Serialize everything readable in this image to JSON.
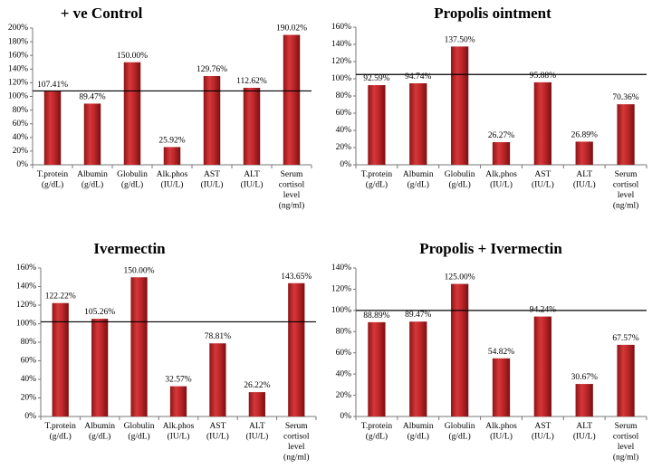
{
  "chart_data": [
    {
      "type": "bar",
      "title": "+ ve Control",
      "categories": [
        [
          "T.protein",
          "(g/dL)"
        ],
        [
          "Albumin",
          "(g/dL)"
        ],
        [
          "Globulin",
          "(g/dL)"
        ],
        [
          "Alk.phos",
          "(IU/L)"
        ],
        [
          "AST",
          "(IU/L)"
        ],
        [
          "ALT",
          "(IU/L)"
        ],
        [
          "Serum",
          "cortisol",
          "level",
          "(ng/ml)"
        ]
      ],
      "values": [
        107.41,
        89.47,
        150.0,
        25.92,
        129.76,
        112.62,
        190.02
      ],
      "data_labels": [
        "107.41%",
        "89.47%",
        "150.00%",
        "25.92%",
        "129.76%",
        "112.62%",
        "190.02%"
      ],
      "yticks": [
        "0%",
        "20%",
        "40%",
        "60%",
        "80%",
        "100%",
        "120%",
        "140%",
        "160%",
        "180%",
        "200%"
      ],
      "ylim": [
        0,
        200
      ],
      "ref_line": 108,
      "bar_color": "#c0282a"
    },
    {
      "type": "bar",
      "title": "Propolis ointment",
      "categories": [
        [
          "T.protein",
          "(g/dL)"
        ],
        [
          "Albumin",
          "(g/dL)"
        ],
        [
          "Globulin",
          "(g/dL)"
        ],
        [
          "Alk.phos",
          "(IU/L)"
        ],
        [
          "AST",
          "(IU/L)"
        ],
        [
          "ALT",
          "(IU/L)"
        ],
        [
          "Serum",
          "cortisol",
          "level",
          "(ng/ml)"
        ]
      ],
      "values": [
        92.59,
        94.74,
        137.5,
        26.27,
        95.88,
        26.89,
        70.36
      ],
      "data_labels": [
        "92.59%",
        "94.74%",
        "137.50%",
        "26.27%",
        "95.88%",
        "26.89%",
        "70.36%"
      ],
      "yticks": [
        "0%",
        "20%",
        "40%",
        "60%",
        "80%",
        "100%",
        "120%",
        "140%",
        "160%"
      ],
      "ylim": [
        0,
        160
      ],
      "ref_line": 105,
      "bar_color": "#c0282a"
    },
    {
      "type": "bar",
      "title": "Ivermectin",
      "categories": [
        [
          "T.protein",
          "(g/dL)"
        ],
        [
          "Albumin",
          "(g/dL)"
        ],
        [
          "Globulin",
          "(g/dL)"
        ],
        [
          "Alk.phos",
          "(IU/L)"
        ],
        [
          "AST",
          "(IU/L)"
        ],
        [
          "ALT",
          "(IU/L)"
        ],
        [
          "Serum",
          "cortisol",
          "level",
          "(ng/ml)"
        ]
      ],
      "values": [
        122.22,
        105.26,
        150.0,
        32.57,
        78.81,
        26.22,
        143.65
      ],
      "data_labels": [
        "122.22%",
        "105.26%",
        "150.00%",
        "32.57%",
        "78.81%",
        "26.22%",
        "143.65%"
      ],
      "yticks": [
        "0%",
        "20%",
        "40%",
        "60%",
        "80%",
        "100%",
        "120%",
        "140%",
        "160%"
      ],
      "ylim": [
        0,
        160
      ],
      "ref_line": 102,
      "bar_color": "#c0282a"
    },
    {
      "type": "bar",
      "title": "Propolis + Ivermectin",
      "categories": [
        [
          "T.protein",
          "(g/dL)"
        ],
        [
          "Albumin",
          "(g/dL)"
        ],
        [
          "Globulin",
          "(g/dL)"
        ],
        [
          "Alk.phos",
          "(IU/L)"
        ],
        [
          "AST",
          "(IU/L)"
        ],
        [
          "ALT",
          "(IU/L)"
        ],
        [
          "Serum",
          "cortisol",
          "level",
          "(ng/ml)"
        ]
      ],
      "values": [
        88.89,
        89.47,
        125.0,
        54.82,
        94.24,
        30.67,
        67.57
      ],
      "data_labels": [
        "88.89%",
        "89.47%",
        "125.00%",
        "54.82%",
        "94.24%",
        "30.67%",
        "67.57%"
      ],
      "yticks": [
        "0%",
        "20%",
        "40%",
        "60%",
        "80%",
        "100%",
        "120%",
        "140%"
      ],
      "ylim": [
        0,
        140
      ],
      "ref_line": 100,
      "bar_color": "#c0282a"
    }
  ]
}
